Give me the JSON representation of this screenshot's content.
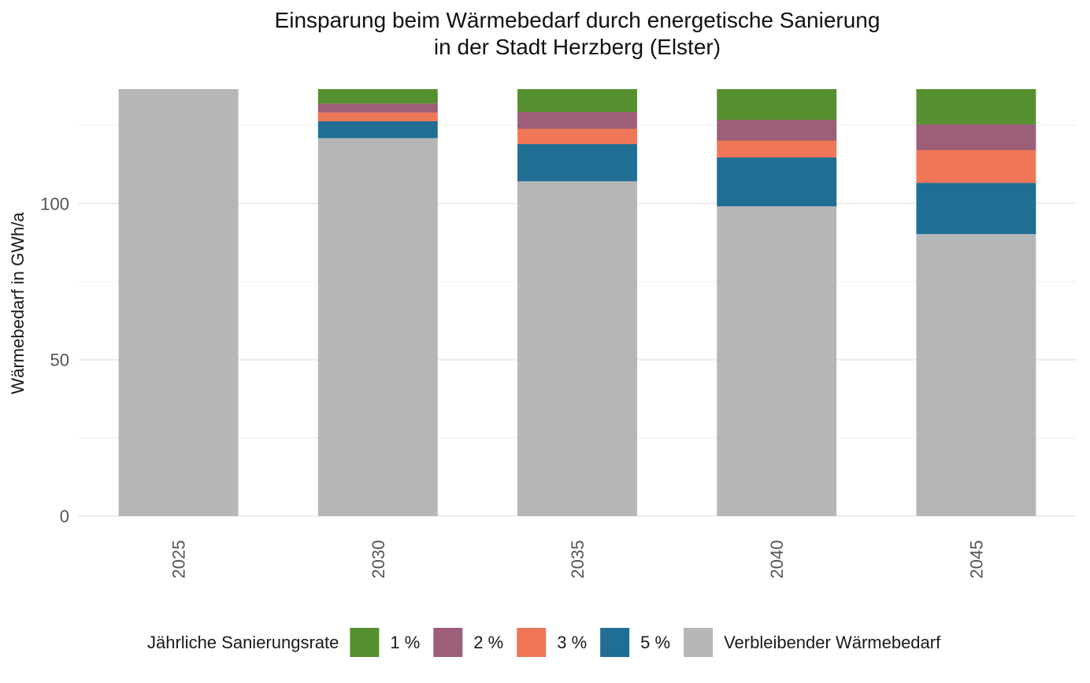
{
  "chart_data": {
    "type": "bar",
    "stacked": true,
    "title": "Einsparung beim Wärmebedarf durch energetische Sanierung",
    "subtitle": "in der Stadt Herzberg (Elster)",
    "xlabel": "",
    "ylabel": "Wärmebedarf in GWh/a",
    "ylim": [
      0,
      136.6
    ],
    "yticks": [
      0,
      50,
      100
    ],
    "yticks_minor": [
      25,
      75,
      125
    ],
    "grid": true,
    "categories": [
      "2025",
      "2030",
      "2035",
      "2040",
      "2045"
    ],
    "series": [
      {
        "name": "Verbleibender Wärmebedarf",
        "color": "#b5b6b8",
        "values": [
          136.6,
          120.9,
          107.1,
          99.1,
          90.2
        ]
      },
      {
        "name": "5 %",
        "color": "#206e94",
        "values": [
          0,
          5.4,
          11.9,
          15.6,
          16.4
        ]
      },
      {
        "name": "3 %",
        "color": "#ef7656",
        "values": [
          0,
          2.8,
          4.9,
          5.4,
          10.5
        ]
      },
      {
        "name": "2 %",
        "color": "#9c5e78",
        "values": [
          0,
          2.9,
          5.4,
          6.7,
          8.2
        ]
      },
      {
        "name": "1 %",
        "color": "#568f2f",
        "values": [
          0,
          4.6,
          7.3,
          9.8,
          11.3
        ]
      }
    ],
    "legend": {
      "title": "Jährliche Sanierungsrate",
      "placement": "bottom",
      "order": [
        "1 %",
        "2 %",
        "3 %",
        "5 %",
        "Verbleibender Wärmebedarf"
      ]
    }
  }
}
